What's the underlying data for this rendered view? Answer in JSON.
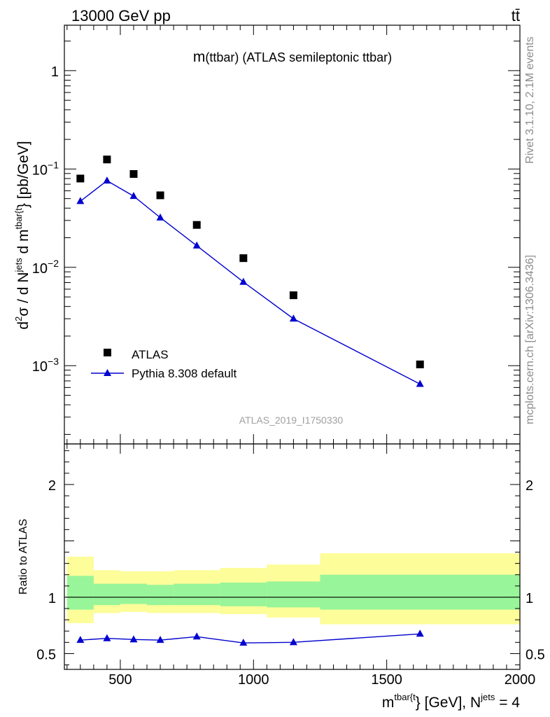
{
  "header": {
    "energy": "13000 GeV pp",
    "process": "tt̄"
  },
  "side": {
    "rivet": "Rivet 3.1.10,  2.1M events",
    "mcplots": "mcplots.cern.ch [arXiv:1306.3436]"
  },
  "colors": {
    "data": "#000000",
    "mc": "#0000d0",
    "band_inner": "#99f599",
    "band_outer": "#fdfd99"
  },
  "chart_data": [
    {
      "type": "scatter",
      "title_main": "m",
      "title_rest": "(ttbar) (ATLAS semileptonic ttbar)",
      "analysis_id": "ATLAS_2019_I1750330",
      "ylabel_sup1": "jets",
      "ylabel_sup2": "tbar{t",
      "ylabel_tail": "} [pb/GeV]",
      "xlabel_sup": "tbar{t",
      "xlabel_mid": "} [GeV], N",
      "xlabel_sup2": "jets",
      "xlabel_tail": " = 4",
      "y_scale": "log",
      "xlim": [
        290,
        2000
      ],
      "ylim": [
        0.00016,
        2.9
      ],
      "x_tick_labels": [
        "500",
        "1000",
        "1500",
        "2000"
      ],
      "y_tick_labels": [
        {
          "base": "1",
          "exp": ""
        },
        {
          "base": "10",
          "exp": "−1"
        },
        {
          "base": "10",
          "exp": "−2"
        },
        {
          "base": "10",
          "exp": "−3"
        }
      ],
      "series": [
        {
          "name": "ATLAS",
          "marker": "square",
          "x": [
            350,
            450,
            550,
            650,
            787,
            962,
            1150,
            1625
          ],
          "y": [
            0.08,
            0.125,
            0.089,
            0.054,
            0.027,
            0.0124,
            0.0052,
            0.00103
          ]
        },
        {
          "name": "Pythia 8.308 default",
          "marker": "triangle",
          "x": [
            350,
            450,
            550,
            650,
            787,
            962,
            1150,
            1625
          ],
          "y": [
            0.047,
            0.076,
            0.053,
            0.032,
            0.0166,
            0.0071,
            0.003,
            0.00065
          ]
        }
      ],
      "legend_position": "bottom-left"
    },
    {
      "type": "line",
      "ylabel": "Ratio to ATLAS",
      "xlim": [
        290,
        2000
      ],
      "ylim": [
        0.36,
        2.36
      ],
      "y_tick_labels": [
        "0.5",
        "1",
        "2"
      ],
      "reference": 1.0,
      "bins": [
        {
          "lo": 300,
          "hi": 400,
          "inner": [
            0.89,
            1.19
          ],
          "outer": [
            0.77,
            1.36
          ]
        },
        {
          "lo": 400,
          "hi": 500,
          "inner": [
            0.93,
            1.12
          ],
          "outer": [
            0.86,
            1.24
          ]
        },
        {
          "lo": 500,
          "hi": 600,
          "inner": [
            0.94,
            1.12
          ],
          "outer": [
            0.87,
            1.23
          ]
        },
        {
          "lo": 600,
          "hi": 700,
          "inner": [
            0.93,
            1.11
          ],
          "outer": [
            0.86,
            1.23
          ]
        },
        {
          "lo": 700,
          "hi": 875,
          "inner": [
            0.93,
            1.12
          ],
          "outer": [
            0.86,
            1.24
          ]
        },
        {
          "lo": 875,
          "hi": 1050,
          "inner": [
            0.92,
            1.13
          ],
          "outer": [
            0.85,
            1.26
          ]
        },
        {
          "lo": 1050,
          "hi": 1250,
          "inner": [
            0.91,
            1.14
          ],
          "outer": [
            0.82,
            1.29
          ]
        },
        {
          "lo": 1250,
          "hi": 2000,
          "inner": [
            0.89,
            1.2
          ],
          "outer": [
            0.76,
            1.39
          ]
        }
      ],
      "series": [
        {
          "name": "Pythia 8.308 default",
          "x": [
            350,
            450,
            550,
            650,
            787,
            962,
            1150,
            1625
          ],
          "y": [
            0.62,
            0.635,
            0.625,
            0.62,
            0.65,
            0.595,
            0.6,
            0.675
          ]
        }
      ]
    }
  ]
}
